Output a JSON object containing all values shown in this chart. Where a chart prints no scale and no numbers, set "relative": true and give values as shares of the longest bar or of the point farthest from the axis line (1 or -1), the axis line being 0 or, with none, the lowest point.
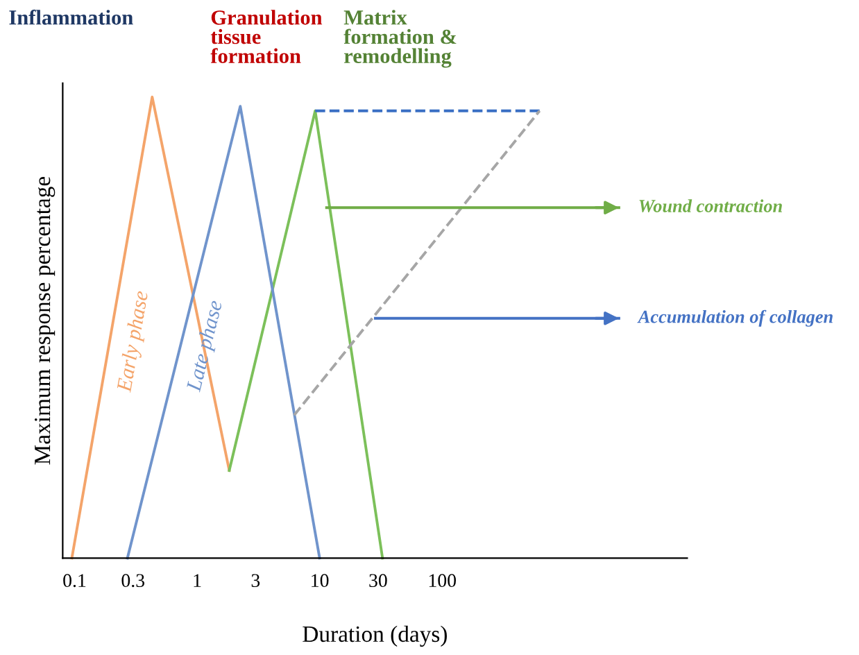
{
  "chart_data": {
    "type": "line",
    "relative": true,
    "xlabel": "Duration (days)",
    "ylabel": "Maximum response percentage",
    "log": "x",
    "xlim": [
      0.08,
      10000
    ],
    "xticks": [
      0.1,
      0.3,
      1,
      3,
      10,
      30,
      100
    ],
    "tick_labels": "x",
    "grid": false,
    "legend": "right",
    "marker": "none",
    "annotations": [
      "Inflammation",
      "Granulation tissue formation",
      "Matrix formation & remodelling"
    ],
    "series": [
      {
        "name": "Early phase",
        "color": "#f4a46a",
        "x": [
          0.095,
          0.43,
          1.83
        ],
        "values": [
          0,
          1,
          0.19
        ]
      },
      {
        "color": "#7cc05a",
        "x": [
          1.83,
          9.2,
          32.6
        ],
        "values": [
          0.19,
          0.97,
          0
        ]
      },
      {
        "name": "Late phase",
        "color": "#7094cc",
        "x": [
          0.27,
          2.25,
          10
        ],
        "values": [
          0,
          0.98,
          0
        ]
      },
      {
        "color": "#3a6fc4",
        "line_style": "dashed",
        "x": [
          9.2,
          624
        ],
        "values": [
          0.97,
          0.97
        ]
      },
      {
        "color": "#a6a6a6",
        "line_style": "dashed",
        "x": [
          6.2,
          624
        ],
        "values": [
          0.31,
          0.97
        ]
      },
      {
        "name": "Wound contraction",
        "color": "#70ad47",
        "x": [
          11.4,
          2770
        ],
        "values": [
          0.76,
          0.76
        ]
      },
      {
        "name": "Accumulation of collagen",
        "color": "#4472c4",
        "x": [
          28.5,
          2770
        ],
        "values": [
          0.52,
          0.52
        ]
      }
    ]
  }
}
